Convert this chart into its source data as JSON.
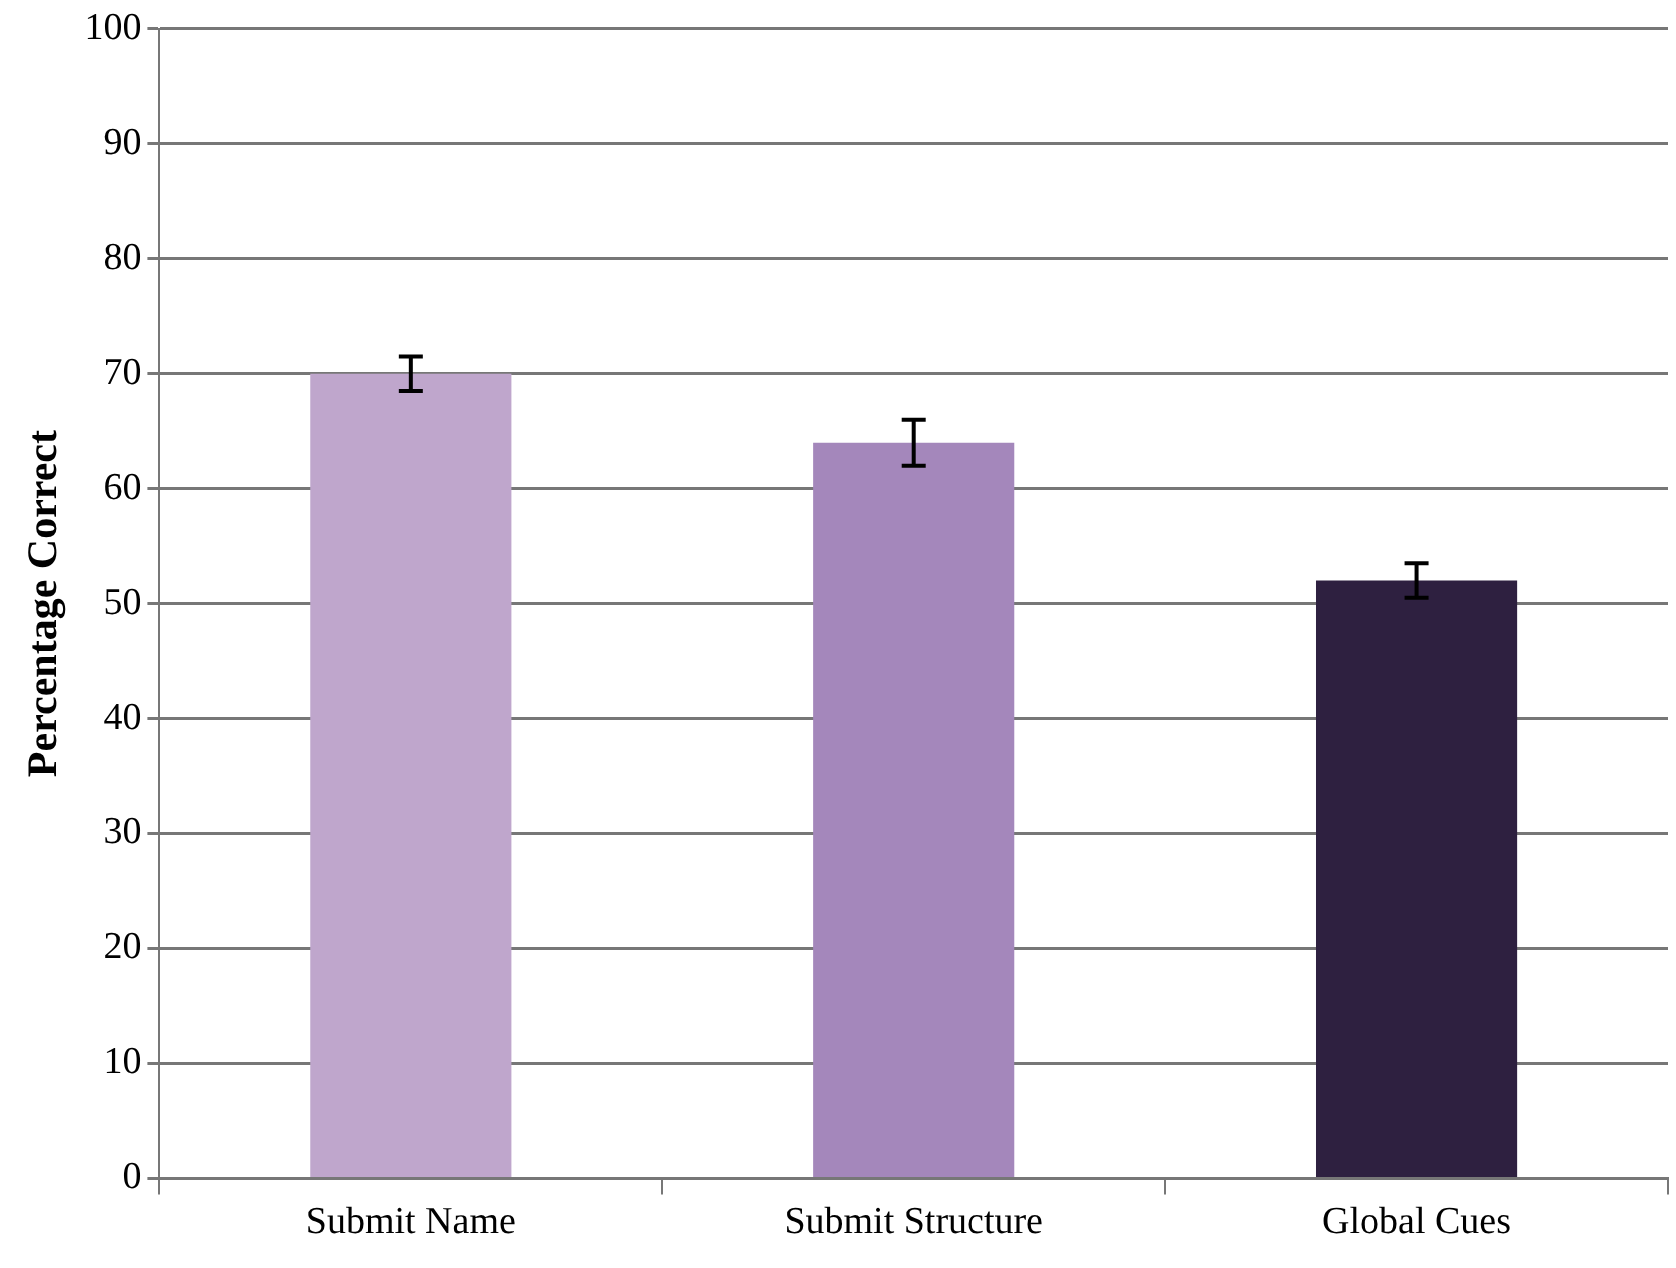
{
  "chart_data": {
    "type": "bar",
    "ylabel": "Percentage Correct",
    "categories": [
      "Submit Name",
      "Submit Structure",
      "Global Cues"
    ],
    "values": [
      70,
      64,
      52
    ],
    "colors": [
      "#bfa6cc",
      "#a487bb",
      "#2e2040"
    ],
    "errors": [
      1.5,
      2,
      1.5
    ],
    "ylim": [
      0,
      100
    ],
    "yticks": [
      0,
      10,
      20,
      30,
      40,
      50,
      60,
      70,
      80,
      90,
      100
    ],
    "grid": "y"
  }
}
